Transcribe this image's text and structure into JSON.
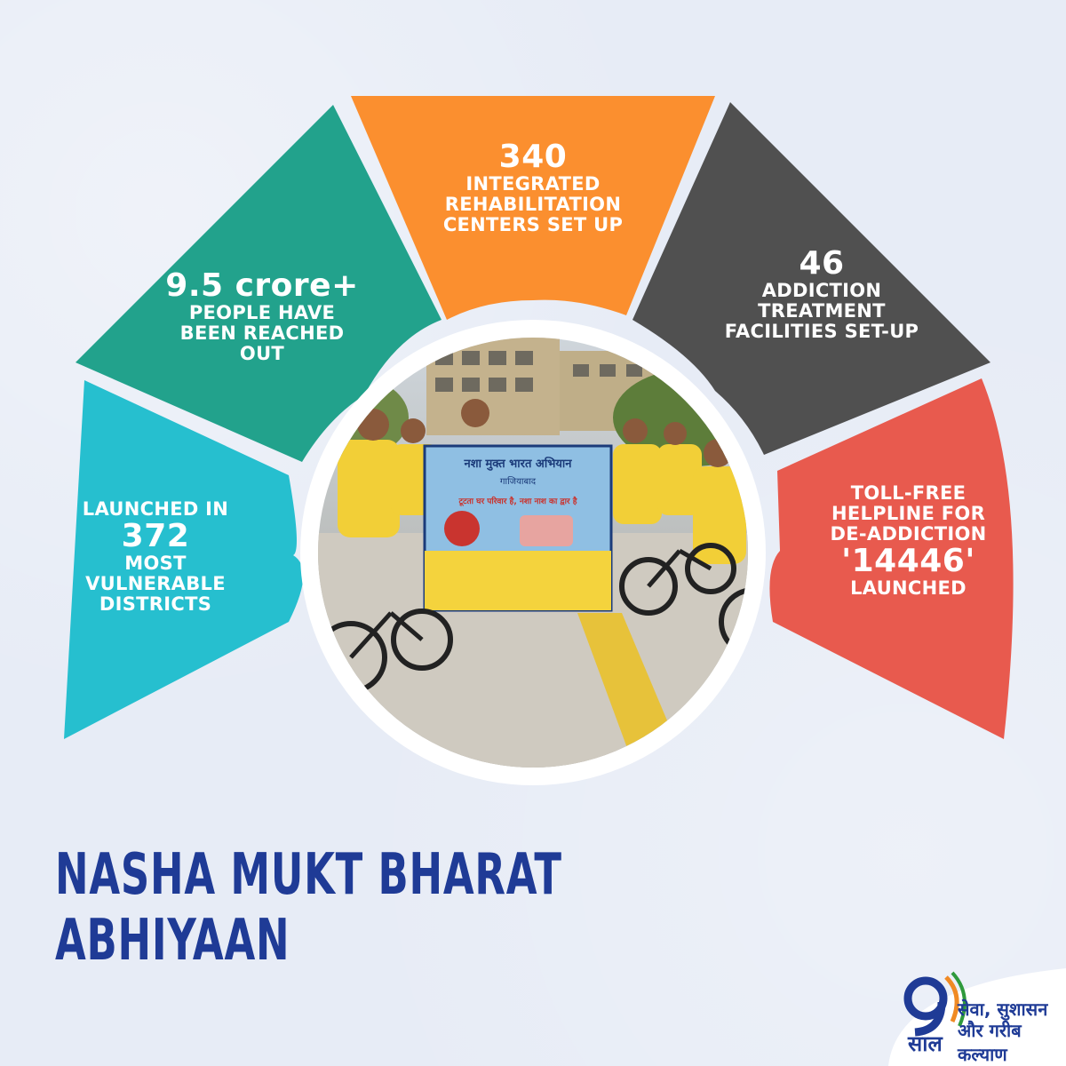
{
  "title_lines": [
    "NASHA MUKT BHARAT",
    "ABHIYAAN"
  ],
  "colors": {
    "cyan": "#26bfcf",
    "green": "#22a28c",
    "orange": "#fb8f2f",
    "dark": "#505050",
    "red": "#e85a4e",
    "title": "#1f3b96",
    "background": "#e7ecf6"
  },
  "segments": [
    {
      "id": "districts",
      "pre": "LAUNCHED IN",
      "big": "372",
      "post": [
        "MOST",
        "VULNERABLE",
        "DISTRICTS"
      ]
    },
    {
      "id": "people",
      "big": "9.5 crore+",
      "post": [
        "PEOPLE HAVE",
        "BEEN REACHED",
        "OUT"
      ]
    },
    {
      "id": "centers",
      "big": "340",
      "post": [
        "INTEGRATED",
        "REHABILITATION",
        "CENTERS SET UP"
      ]
    },
    {
      "id": "facilities",
      "big": "46",
      "post": [
        "ADDICTION",
        "TREATMENT",
        "FACILITIES SET-UP"
      ]
    },
    {
      "id": "helpline",
      "pre_lines": [
        "TOLL-FREE",
        "HELPLINE FOR",
        "DE-ADDICTION"
      ],
      "big": "'14446'",
      "post": [
        "LAUNCHED"
      ]
    }
  ],
  "photo": {
    "banner_title": "नशा मुक्त भारत अभियान",
    "banner_sub": "गाजियाबाद",
    "banner_line": "टूटता घर परिवार है, नशा नाश का द्वार है"
  },
  "logo": {
    "number": "9",
    "saal": "साल",
    "line1": "सेवा, सुशासन",
    "line2": "और गरीब कल्याण"
  }
}
